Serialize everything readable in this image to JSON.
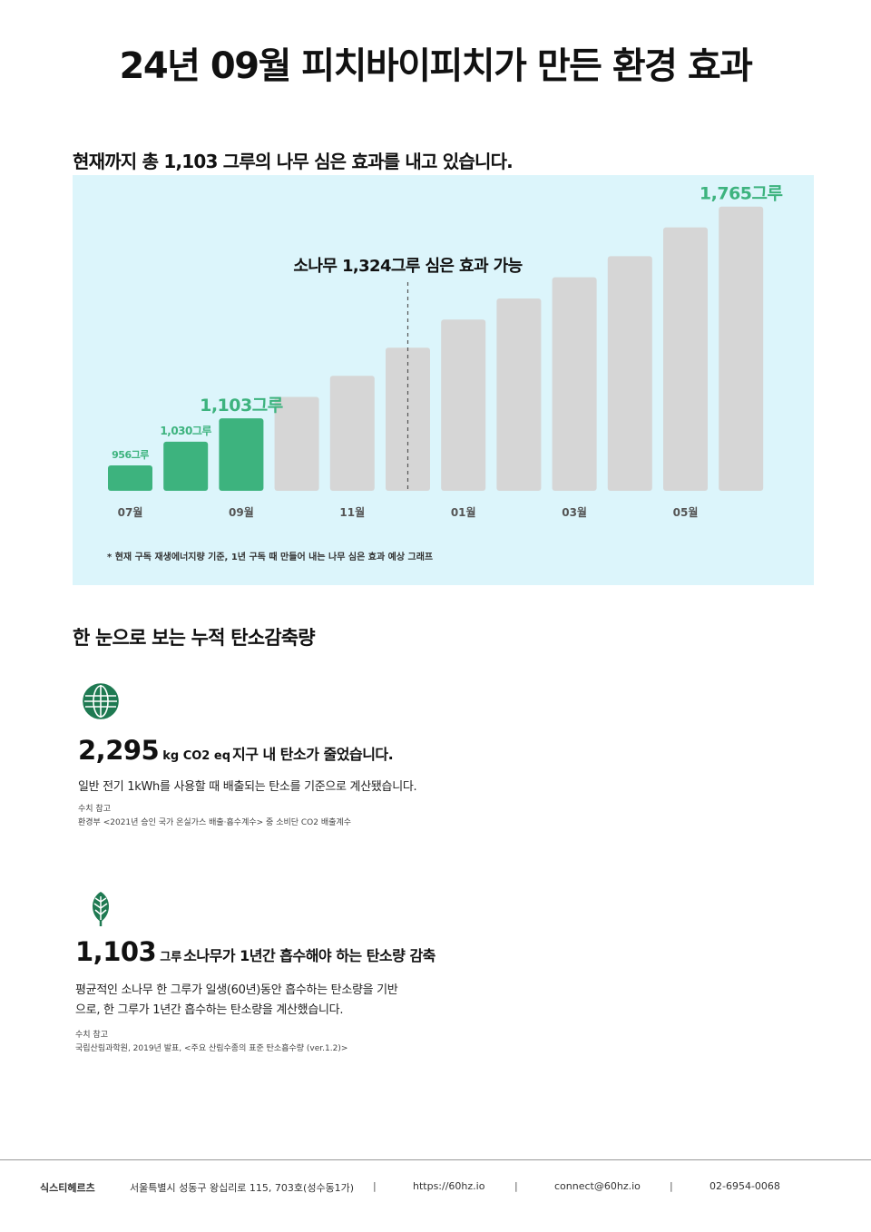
{
  "page_title": "24년 09월 피치바이피치가 만든 환경 효과",
  "chart_heading": "현재까지 총 1,103 그루의 나무 심은 효과를 내고 있습니다.",
  "chart_data": {
    "type": "bar",
    "categories": [
      "07월",
      "08월",
      "09월",
      "10월",
      "11월",
      "12월",
      "01월",
      "02월",
      "03월",
      "04월",
      "05월",
      "06월"
    ],
    "values": [
      956,
      1030,
      1103,
      1170,
      1236,
      1324,
      1412,
      1478,
      1544,
      1610,
      1700,
      1765
    ],
    "visible_tick_labels": [
      "07월",
      "09월",
      "11월",
      "01월",
      "03월",
      "05월"
    ],
    "data_labels": {
      "0": "956그루",
      "1": "1,030그루",
      "2": "1,103그루",
      "11": "1,765그루"
    },
    "highlight_count": 3,
    "annotation": "소나무 1,324그루 심은 효과 가능",
    "annotation_after_index": 5,
    "footnote": "* 현재 구독 재생에너지량 기준, 1년 구독 때 만들어 내는 나무 심은 효과 예상 그래프",
    "colors": {
      "actual": "#3db37e",
      "projected": "#d6d6d6",
      "label": "#3db37e",
      "panel": "#dcf5fb"
    }
  },
  "summary_heading": "한 눈으로 보는 누적 탄소감축량",
  "metrics": [
    {
      "icon": "globe-icon",
      "value": "2,295",
      "unit": "kg CO2 eq",
      "text": "지구 내 탄소가 줄었습니다.",
      "description": "일반 전기 1kWh를 사용할 때 배출되는 탄소를 기준으로 계산됐습니다.",
      "ref_label": "수치 참고",
      "ref_source": "환경부 <2021년 승인 국가 온실가스 배출·흡수계수> 중 소비단 CO2 배출계수"
    },
    {
      "icon": "leaf-icon",
      "value": "1,103",
      "unit": "그루",
      "text": "소나무가 1년간 흡수해야 하는 탄소량 감축",
      "description_lines": [
        "평균적인 소나무 한 그루가 일생(60년)동안 흡수하는 탄소량을 기반",
        "으로, 한 그루가 1년간 흡수하는 탄소량을 계산했습니다."
      ],
      "ref_label": "수치 참고",
      "ref_source": "국립산림과학원, 2019년 발표, <주요 산림수종의 표준 탄소흡수량 (ver.1.2)>"
    }
  ],
  "footer": {
    "company": "식스티헤르츠",
    "address": "서울특별시 성동구 왕십리로 115, 703호(성수동1가)",
    "separator": "|",
    "website": "https://60hz.io",
    "email": "connect@60hz.io",
    "phone": "02-6954-0068"
  }
}
